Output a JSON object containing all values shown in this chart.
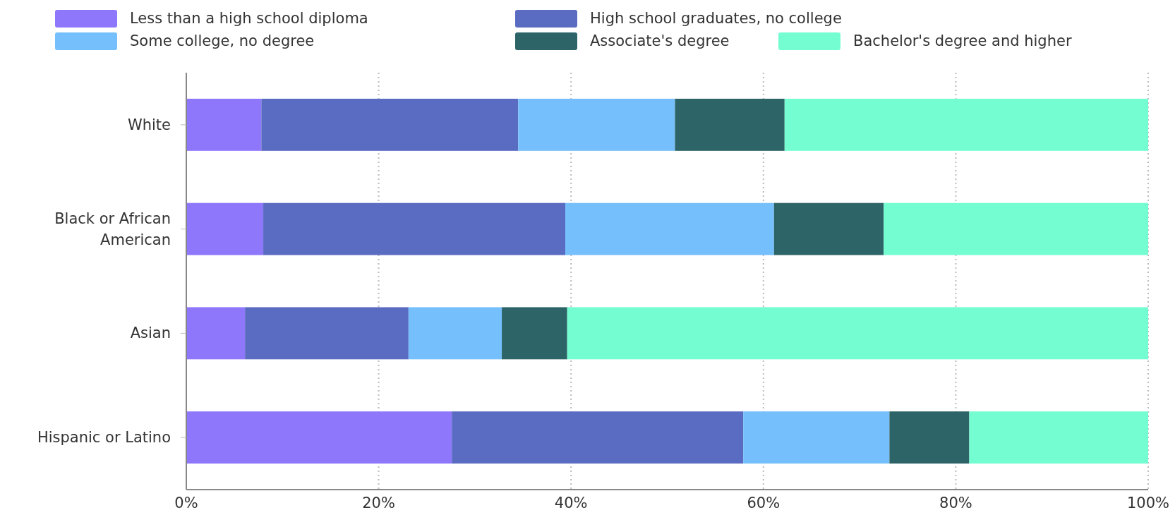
{
  "chart_data": {
    "type": "bar",
    "orientation": "horizontal",
    "stacked": true,
    "categories": [
      "White",
      "Black or African American",
      "Asian",
      "Hispanic or Latino"
    ],
    "series": [
      {
        "name": "Less than a high school diploma",
        "color": "#8f77fc",
        "values": [
          7.8,
          8.0,
          6.1,
          27.6
        ]
      },
      {
        "name": "High school graduates, no college",
        "color": "#5a6bc2",
        "values": [
          26.7,
          31.4,
          17.0,
          30.3
        ]
      },
      {
        "name": "Some college, no degree",
        "color": "#75bffc",
        "values": [
          16.3,
          21.7,
          9.7,
          15.2
        ]
      },
      {
        "name": "Associate's degree",
        "color": "#2d6468",
        "values": [
          11.4,
          11.4,
          6.8,
          8.3
        ]
      },
      {
        "name": "Bachelor's degree and higher",
        "color": "#75fdd2",
        "values": [
          37.8,
          27.5,
          60.4,
          18.6
        ]
      }
    ],
    "xlim": [
      0,
      100
    ],
    "xticks": [
      {
        "value": 0,
        "label": "0%"
      },
      {
        "value": 20,
        "label": "20%"
      },
      {
        "value": 40,
        "label": "40%"
      },
      {
        "value": 60,
        "label": "60%"
      },
      {
        "value": 80,
        "label": "80%"
      },
      {
        "value": 100,
        "label": "100%"
      }
    ],
    "grid": "x",
    "legend": "top"
  }
}
